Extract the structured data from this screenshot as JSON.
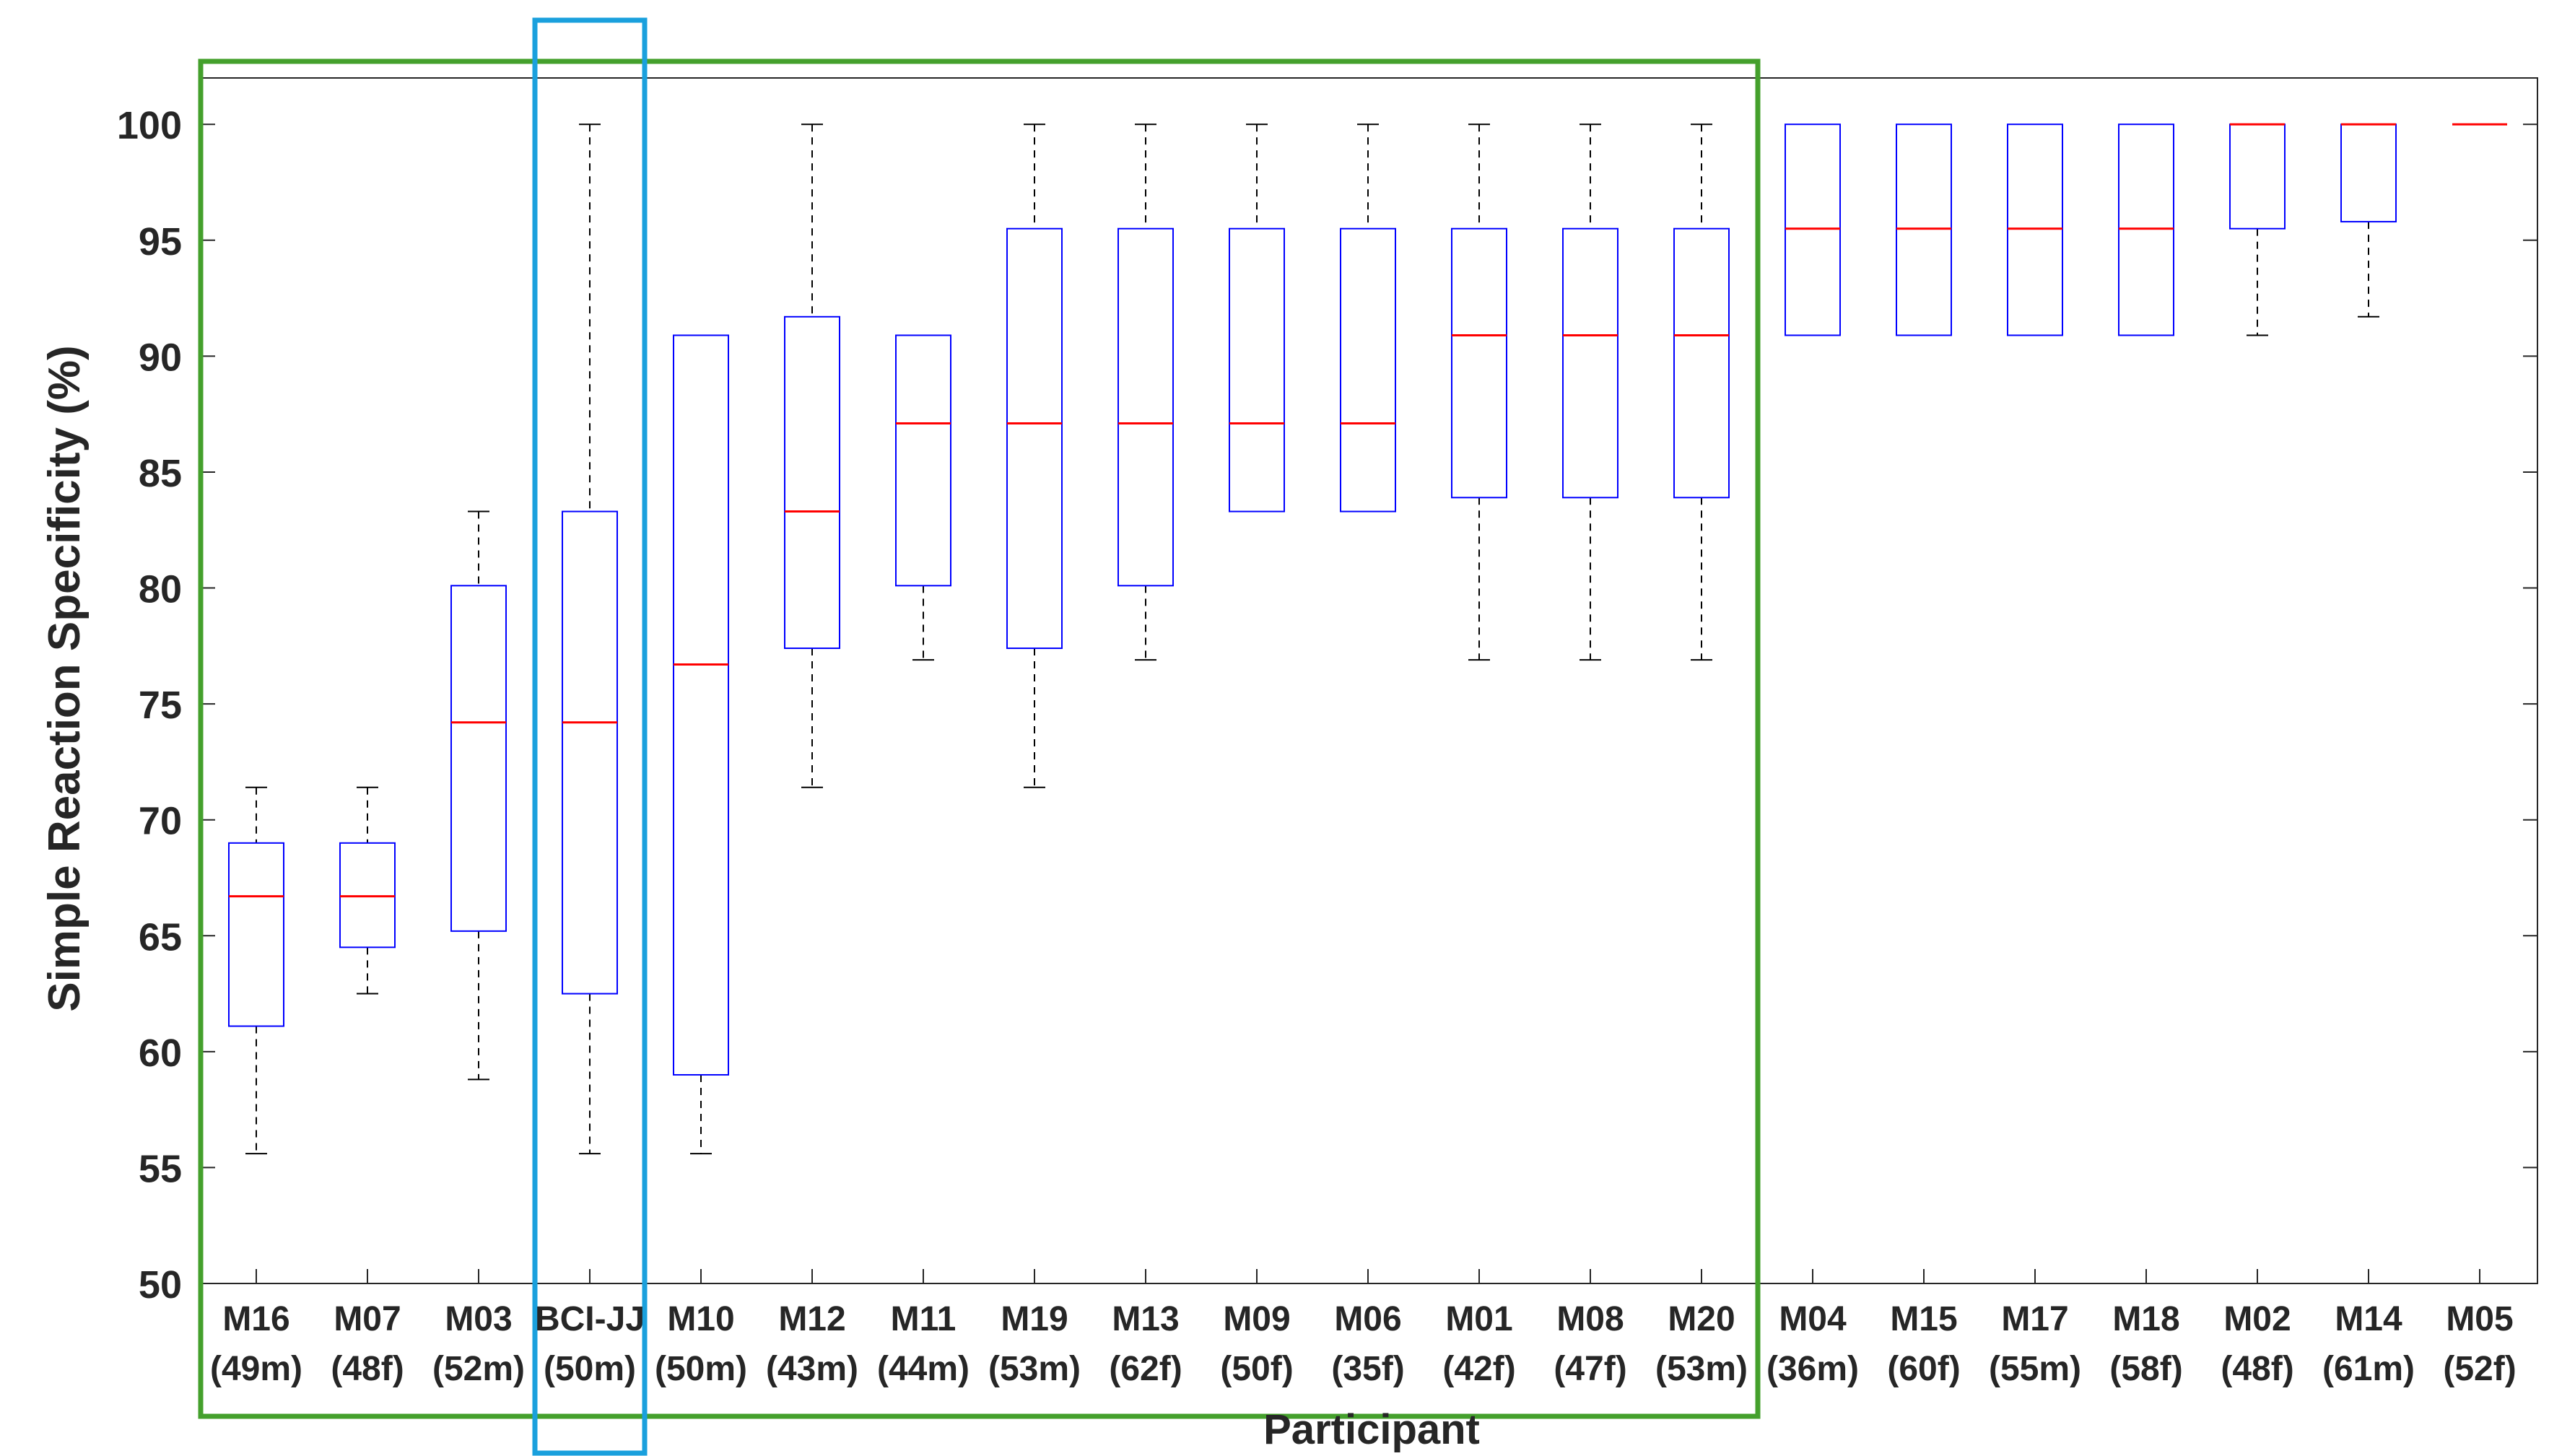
{
  "chart_data": {
    "type": "box",
    "xlabel": "Participant",
    "ylabel": "Simple Reaction Specificity (%)",
    "ylim": [
      50,
      102
    ],
    "yticks": [
      50,
      55,
      60,
      65,
      70,
      75,
      80,
      85,
      90,
      95,
      100
    ],
    "grid": false,
    "colors": {
      "box": "#0000ff",
      "median": "#ff0000",
      "whisker": "#000000",
      "green_highlight": "#44a02c",
      "blue_highlight": "#1aa0dd"
    },
    "categories": [
      {
        "id": "M16",
        "info": "(49m)"
      },
      {
        "id": "M07",
        "info": "(48f)"
      },
      {
        "id": "M03",
        "info": "(52m)"
      },
      {
        "id": "BCI-JJ",
        "info": "(50m)"
      },
      {
        "id": "M10",
        "info": "(50m)"
      },
      {
        "id": "M12",
        "info": "(43m)"
      },
      {
        "id": "M11",
        "info": "(44m)"
      },
      {
        "id": "M19",
        "info": "(53m)"
      },
      {
        "id": "M13",
        "info": "(62f)"
      },
      {
        "id": "M09",
        "info": "(50f)"
      },
      {
        "id": "M06",
        "info": "(35f)"
      },
      {
        "id": "M01",
        "info": "(42f)"
      },
      {
        "id": "M08",
        "info": "(47f)"
      },
      {
        "id": "M20",
        "info": "(53m)"
      },
      {
        "id": "M04",
        "info": "(36m)"
      },
      {
        "id": "M15",
        "info": "(60f)"
      },
      {
        "id": "M17",
        "info": "(55m)"
      },
      {
        "id": "M18",
        "info": "(58f)"
      },
      {
        "id": "M02",
        "info": "(48f)"
      },
      {
        "id": "M14",
        "info": "(61m)"
      },
      {
        "id": "M05",
        "info": "(52f)"
      }
    ],
    "boxes": [
      {
        "whisker_low": 55.6,
        "q1": 61.1,
        "median": 66.7,
        "q3": 69.0,
        "whisker_high": 71.4
      },
      {
        "whisker_low": 62.5,
        "q1": 64.5,
        "median": 66.7,
        "q3": 69.0,
        "whisker_high": 71.4
      },
      {
        "whisker_low": 58.8,
        "q1": 65.2,
        "median": 74.2,
        "q3": 80.1,
        "whisker_high": 83.3
      },
      {
        "whisker_low": 55.6,
        "q1": 62.5,
        "median": 74.2,
        "q3": 83.3,
        "whisker_high": 100
      },
      {
        "whisker_low": 55.6,
        "q1": 59.0,
        "median": 76.7,
        "q3": 90.9,
        "whisker_high": 90.9
      },
      {
        "whisker_low": 71.4,
        "q1": 77.4,
        "median": 83.3,
        "q3": 91.7,
        "whisker_high": 100
      },
      {
        "whisker_low": 76.9,
        "q1": 80.1,
        "median": 87.1,
        "q3": 90.9,
        "whisker_high": 90.9
      },
      {
        "whisker_low": 71.4,
        "q1": 77.4,
        "median": 87.1,
        "q3": 95.5,
        "whisker_high": 100
      },
      {
        "whisker_low": 76.9,
        "q1": 80.1,
        "median": 87.1,
        "q3": 95.5,
        "whisker_high": 100
      },
      {
        "whisker_low": 83.3,
        "q1": 83.3,
        "median": 87.1,
        "q3": 95.5,
        "whisker_high": 100
      },
      {
        "whisker_low": 83.3,
        "q1": 83.3,
        "median": 87.1,
        "q3": 95.5,
        "whisker_high": 100
      },
      {
        "whisker_low": 76.9,
        "q1": 83.9,
        "median": 90.9,
        "q3": 95.5,
        "whisker_high": 100
      },
      {
        "whisker_low": 76.9,
        "q1": 83.9,
        "median": 90.9,
        "q3": 95.5,
        "whisker_high": 100
      },
      {
        "whisker_low": 76.9,
        "q1": 83.9,
        "median": 90.9,
        "q3": 95.5,
        "whisker_high": 100
      },
      {
        "whisker_low": 90.9,
        "q1": 90.9,
        "median": 95.5,
        "q3": 100,
        "whisker_high": 100
      },
      {
        "whisker_low": 90.9,
        "q1": 90.9,
        "median": 95.5,
        "q3": 100,
        "whisker_high": 100
      },
      {
        "whisker_low": 90.9,
        "q1": 90.9,
        "median": 95.5,
        "q3": 100,
        "whisker_high": 100
      },
      {
        "whisker_low": 90.9,
        "q1": 90.9,
        "median": 95.5,
        "q3": 100,
        "whisker_high": 100
      },
      {
        "whisker_low": 90.9,
        "q1": 95.5,
        "median": 100,
        "q3": 100,
        "whisker_high": 100
      },
      {
        "whisker_low": 91.7,
        "q1": 95.8,
        "median": 100,
        "q3": 100,
        "whisker_high": 100
      },
      {
        "whisker_low": 100,
        "q1": 100,
        "median": 100,
        "q3": 100,
        "whisker_high": 100
      }
    ],
    "highlights": [
      {
        "color_key": "green_highlight",
        "from_category": "M16",
        "to_category": "M20"
      },
      {
        "color_key": "blue_highlight",
        "from_category": "BCI-JJ",
        "to_category": "BCI-JJ"
      }
    ]
  }
}
